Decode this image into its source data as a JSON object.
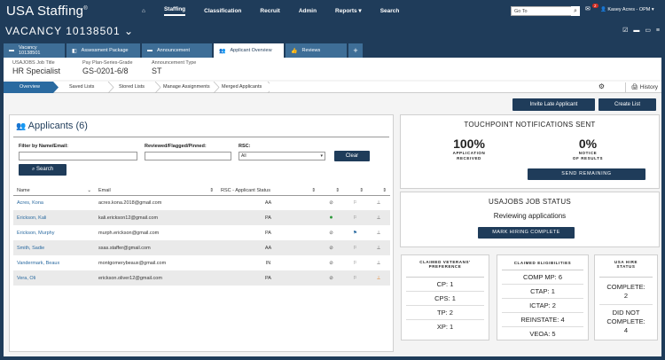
{
  "app": {
    "logo": "USA Staffing",
    "logo_mark": "®"
  },
  "nav": {
    "items": [
      "Staffing",
      "Classification",
      "Recruit",
      "Admin",
      "Reports",
      "Search"
    ]
  },
  "goto": {
    "placeholder": "Go To"
  },
  "notif": {
    "count": "2"
  },
  "user": {
    "name": "Kasey Acres - OPM"
  },
  "vacancy": {
    "title": "VACANCY 10138501"
  },
  "tabs": [
    "Vacancy 10138501",
    "Assessment Package",
    "Announcement",
    "Applicant Overview",
    "Reviews"
  ],
  "job": {
    "title_label": "USAJOBS Job Title",
    "title": "HR Specialist",
    "pay_label": "Pay Plan-Series-Grade",
    "pay": "GS-0201-6/8",
    "ann_label": "Announcement Type",
    "ann": "ST"
  },
  "subtabs": [
    "Overview",
    "Saved Lists",
    "Stored Lists",
    "Manage Assignments",
    "Merged Applicants"
  ],
  "history": "History",
  "buttons": {
    "invite": "Invite Late Applicant",
    "create": "Create List",
    "search": "Search",
    "clear": "Clear",
    "send": "SEND REMAINING",
    "hiring": "MARK HIRING COMPLETE"
  },
  "applicants": {
    "title": "Applicants (6)",
    "filter_name_label": "Filter by Name/Email:",
    "filter_rfp_label": "Reviewed/Flagged/Pinned:",
    "rsc_label": "RSC:",
    "rsc_value": "All",
    "columns": [
      "Name",
      "Email",
      "RSC - Applicant Status"
    ],
    "rows": [
      {
        "name": "Acres, Kona",
        "email": "acres.kona.2018@gmail.com",
        "rsc": "AA"
      },
      {
        "name": "Erickson, Kali",
        "email": "kali.erickson12@gmail.com",
        "rsc": "PA"
      },
      {
        "name": "Erickson, Murphy",
        "email": "murph.erickson@gmail.com",
        "rsc": "PA"
      },
      {
        "name": "Smith, Sadie",
        "email": "ssas.staffer@gmail.com",
        "rsc": "AA"
      },
      {
        "name": "Vandermark, Beaux",
        "email": "montgomerybeaux@gmail.com",
        "rsc": "IN"
      },
      {
        "name": "Vera, Oli",
        "email": "erickson.oliver12@gmail.com",
        "rsc": "PA"
      }
    ]
  },
  "touch": {
    "title": "TOUCHPOINT NOTIFICATIONS SENT",
    "pct1": "100%",
    "lab1a": "APPLICATION",
    "lab1b": "RECEIVED",
    "pct2": "0%",
    "lab2a": "NOTICE",
    "lab2b": "OF RESULTS"
  },
  "usajobs": {
    "title": "USAJOBS JOB STATUS",
    "status": "Reviewing applications"
  },
  "veterans": {
    "title_a": "CLAIMED VETERANS'",
    "title_b": "PREFERENCE",
    "items": [
      "CP: 1",
      "CPS: 1",
      "TP: 2",
      "XP: 1"
    ]
  },
  "elig": {
    "title": "CLAIMED ELIGIBILITIES",
    "items": [
      "COMP MP: 6",
      "CTAP: 1",
      "ICTAP: 2",
      "REINSTATE: 4",
      "VEOA: 5"
    ]
  },
  "hire": {
    "title_a": "USA HIRE",
    "title_b": "STATUS",
    "complete_label": "COMPLETE:",
    "complete": "2",
    "notc_a": "DID NOT",
    "notc_b": "COMPLETE:",
    "notc": "4"
  }
}
